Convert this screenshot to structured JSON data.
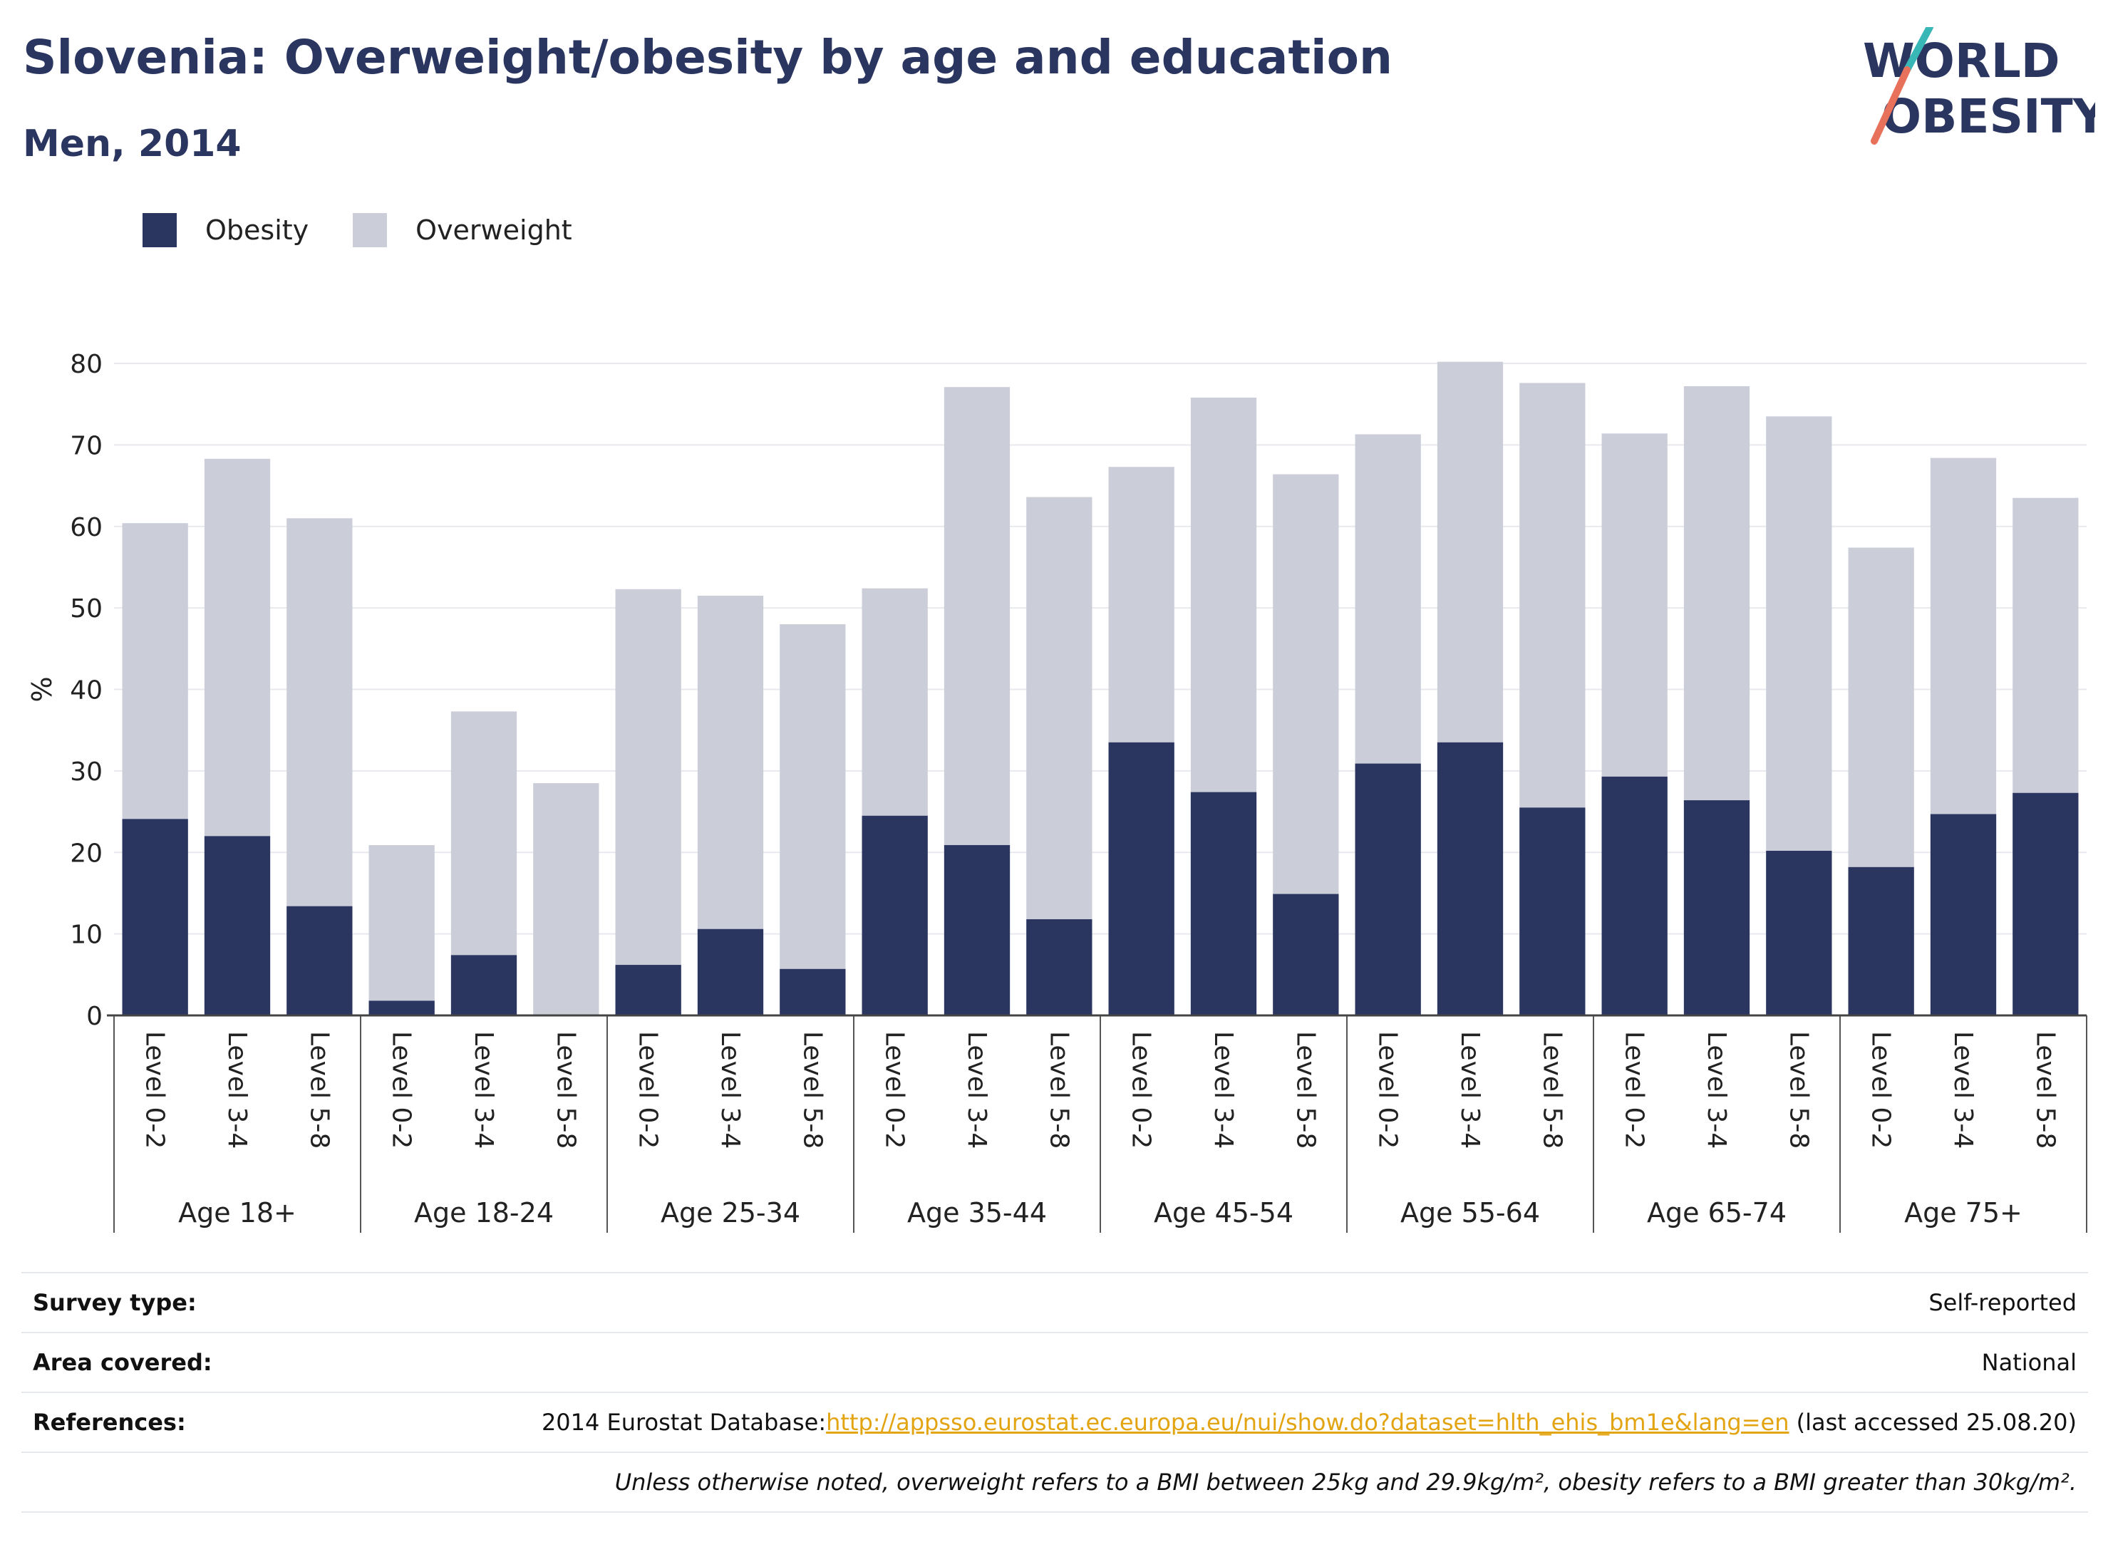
{
  "title": "Slovenia: Overweight/obesity by age and education",
  "subtitle": "Men, 2014",
  "logo": {
    "line1": "WORLD",
    "line2": "OBESITY"
  },
  "legend": {
    "obesity_label": "Obesity",
    "overweight_label": "Overweight"
  },
  "colors": {
    "obesity": "#2a3560",
    "overweight": "#cbcdd9",
    "text": "#2a3560",
    "link": "#e3a412",
    "logo_slash_teal": "#39b6b6",
    "logo_slash_red": "#e8715b"
  },
  "info": {
    "survey_label": "Survey type:",
    "survey_value": "Self-reported",
    "area_label": "Area covered:",
    "area_value": "National",
    "references_label": "References:",
    "references_prefix": "2014 Eurostat Database:",
    "references_link": "http://appsso.eurostat.ec.europa.eu/nui/show.do?dataset=hlth_ehis_bm1e&lang=en",
    "references_suffix": " (last accessed 25.08.20)",
    "note": "Unless otherwise noted, overweight refers to a BMI between 25kg and 29.9kg/m², obesity refers to a BMI greater than 30kg/m²."
  },
  "chart_data": {
    "type": "bar",
    "stacked": false,
    "ylabel": "%",
    "ylim": [
      0,
      80
    ],
    "yticks": [
      0,
      10,
      20,
      30,
      40,
      50,
      60,
      70,
      80
    ],
    "grid": true,
    "legend_position": "top-left",
    "groups": [
      {
        "label": "Age 18+",
        "levels": [
          "Level 0-2",
          "Level 3-4",
          "Level 5-8"
        ],
        "obesity": [
          24.1,
          22.0,
          13.4
        ],
        "overweight": [
          60.4,
          68.3,
          61.0
        ]
      },
      {
        "label": "Age 18-24",
        "levels": [
          "Level 0-2",
          "Level 3-4",
          "Level 5-8"
        ],
        "obesity": [
          1.8,
          7.4,
          0
        ],
        "overweight": [
          20.9,
          37.3,
          28.5
        ]
      },
      {
        "label": "Age 25-34",
        "levels": [
          "Level 0-2",
          "Level 3-4",
          "Level 5-8"
        ],
        "obesity": [
          6.2,
          10.6,
          5.7
        ],
        "overweight": [
          52.3,
          51.5,
          48.0
        ]
      },
      {
        "label": "Age 35-44",
        "levels": [
          "Level 0-2",
          "Level 3-4",
          "Level 5-8"
        ],
        "obesity": [
          24.5,
          20.9,
          11.8
        ],
        "overweight": [
          52.4,
          77.1,
          63.6
        ]
      },
      {
        "label": "Age 45-54",
        "levels": [
          "Level 0-2",
          "Level 3-4",
          "Level 5-8"
        ],
        "obesity": [
          33.5,
          27.4,
          14.9
        ],
        "overweight": [
          67.3,
          75.8,
          66.4
        ]
      },
      {
        "label": "Age 55-64",
        "levels": [
          "Level 0-2",
          "Level 3-4",
          "Level 5-8"
        ],
        "obesity": [
          30.9,
          33.5,
          25.5
        ],
        "overweight": [
          71.3,
          80.2,
          77.6
        ]
      },
      {
        "label": "Age 65-74",
        "levels": [
          "Level 0-2",
          "Level 3-4",
          "Level 5-8"
        ],
        "obesity": [
          29.3,
          26.4,
          20.2
        ],
        "overweight": [
          71.4,
          77.2,
          73.5
        ]
      },
      {
        "label": "Age 75+",
        "levels": [
          "Level 0-2",
          "Level 3-4",
          "Level 5-8"
        ],
        "obesity": [
          18.2,
          24.7,
          27.3
        ],
        "overweight": [
          57.4,
          68.4,
          63.5
        ]
      }
    ]
  }
}
